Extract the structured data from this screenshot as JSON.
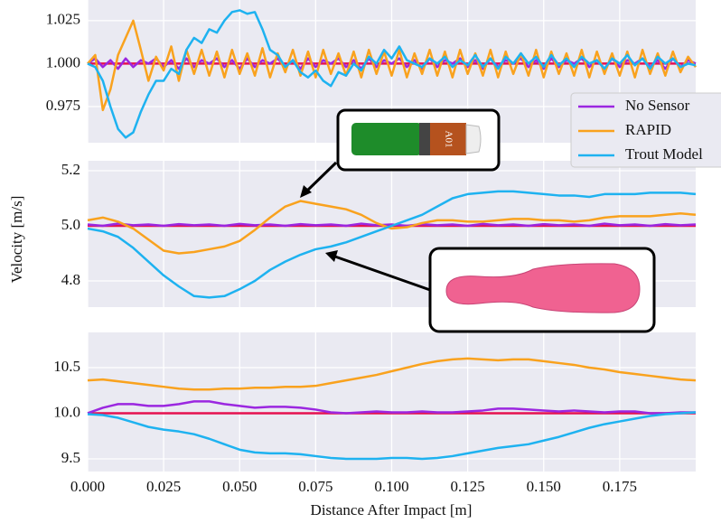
{
  "chart_data": [
    {
      "type": "line",
      "x": [
        0,
        0.0025,
        0.005,
        0.0075,
        0.01,
        0.0125,
        0.015,
        0.0175,
        0.02,
        0.0225,
        0.025,
        0.0275,
        0.03,
        0.0325,
        0.035,
        0.0375,
        0.04,
        0.0425,
        0.045,
        0.0475,
        0.05,
        0.0525,
        0.055,
        0.0575,
        0.06,
        0.0625,
        0.065,
        0.0675,
        0.07,
        0.0725,
        0.075,
        0.0775,
        0.08,
        0.0825,
        0.085,
        0.0875,
        0.09,
        0.0925,
        0.095,
        0.0975,
        0.1,
        0.1025,
        0.105,
        0.1075,
        0.11,
        0.1125,
        0.115,
        0.1175,
        0.12,
        0.1225,
        0.125,
        0.1275,
        0.13,
        0.1325,
        0.135,
        0.1375,
        0.14,
        0.1425,
        0.145,
        0.1475,
        0.15,
        0.1525,
        0.155,
        0.1575,
        0.16,
        0.1625,
        0.165,
        0.1675,
        0.17,
        0.1725,
        0.175,
        0.1775,
        0.18,
        0.1825,
        0.185,
        0.1875,
        0.19,
        0.1925,
        0.195,
        0.1975,
        0.2
      ],
      "series": [
        {
          "name": "No Sensor",
          "color": "#9b27e0",
          "values": [
            1.0,
            1.003,
            0.998,
            1.002,
            0.997,
            1.003,
            0.998,
            1.002,
            1.0,
            1.003,
            0.998,
            1.002,
            0.997,
            1.003,
            0.998,
            1.002,
            1.0,
            1.003,
            0.998,
            1.002,
            0.997,
            1.003,
            0.998,
            1.002,
            1.0,
            1.003,
            0.998,
            1.002,
            0.997,
            1.003,
            0.998,
            1.002,
            1.0,
            1.003,
            0.998,
            1.002,
            0.997,
            1.003,
            0.998,
            1.002,
            1.0,
            1.003,
            0.998,
            1.002,
            0.997,
            1.003,
            0.998,
            1.002,
            1.0,
            1.003,
            0.998,
            1.002,
            0.997,
            1.003,
            0.998,
            1.002,
            1.0,
            1.003,
            0.998,
            1.002,
            0.997,
            1.003,
            0.998,
            1.002,
            1.0,
            1.003,
            0.998,
            1.002,
            0.997,
            1.003,
            0.998,
            1.002,
            1.0,
            1.003,
            0.998,
            1.002,
            0.997,
            1.003,
            0.998,
            1.002,
            1.0
          ]
        },
        {
          "name": "RAPID",
          "color": "#f9a21e",
          "values": [
            1.0,
            1.005,
            0.973,
            0.985,
            1.005,
            1.015,
            1.025,
            1.008,
            0.99,
            1.004,
            0.996,
            1.01,
            0.99,
            1.008,
            0.994,
            1.008,
            0.993,
            1.007,
            0.992,
            1.008,
            0.994,
            1.006,
            0.993,
            1.009,
            0.992,
            1.006,
            0.995,
            1.008,
            0.993,
            1.007,
            0.992,
            1.008,
            0.994,
            1.006,
            0.993,
            1.007,
            0.992,
            1.008,
            0.994,
            1.007,
            0.993,
            1.008,
            0.992,
            1.006,
            0.994,
            1.008,
            0.993,
            1.007,
            0.992,
            1.008,
            0.994,
            1.006,
            0.993,
            1.008,
            0.992,
            1.007,
            0.994,
            1.006,
            0.993,
            1.008,
            0.992,
            1.007,
            0.994,
            1.006,
            0.993,
            1.008,
            0.992,
            1.007,
            0.994,
            1.006,
            0.993,
            1.007,
            0.992,
            1.008,
            0.994,
            1.006,
            0.993,
            1.007,
            0.995,
            1.004,
            0.998
          ]
        },
        {
          "name": "Trout Model",
          "color": "#1eb2f0",
          "values": [
            1.0,
            0.998,
            0.99,
            0.975,
            0.962,
            0.957,
            0.96,
            0.972,
            0.982,
            0.99,
            0.99,
            0.997,
            0.994,
            1.008,
            1.015,
            1.012,
            1.02,
            1.018,
            1.025,
            1.03,
            1.031,
            1.029,
            1.03,
            1.02,
            1.008,
            1.005,
            0.998,
            1.002,
            0.995,
            0.992,
            0.996,
            0.99,
            0.987,
            0.995,
            0.993,
            1.0,
            0.996,
            1.004,
            1.0,
            1.008,
            1.003,
            1.01,
            1.002,
            1.0,
            0.998,
            1.003,
            1.0,
            1.004,
            0.998,
            1.002,
            0.999,
            1.005,
            0.998,
            1.003,
            0.997,
            1.004,
            1.0,
            1.006,
            1.0,
            1.004,
            0.998,
            1.005,
            0.999,
            1.003,
            0.998,
            1.004,
            1.0,
            1.002,
            0.997,
            1.003,
            1.0,
            1.005,
            0.999,
            1.003,
            0.997,
            1.004,
            1.0,
            1.003,
            0.998,
            1.0,
            0.999
          ]
        }
      ],
      "hline": {
        "value": 1,
        "color": "#e5114f"
      },
      "xlim": [
        0,
        0.2
      ],
      "ylim": [
        0.954,
        1.037
      ],
      "yticks": [
        1.025,
        {
          "value": 1,
          "label": "1.000"
        },
        0.975
      ],
      "grid": true
    },
    {
      "type": "line",
      "x": [
        0,
        0.005,
        0.01,
        0.015,
        0.02,
        0.025,
        0.03,
        0.035,
        0.04,
        0.045,
        0.05,
        0.055,
        0.06,
        0.065,
        0.07,
        0.075,
        0.08,
        0.085,
        0.09,
        0.095,
        0.1,
        0.105,
        0.11,
        0.115,
        0.12,
        0.125,
        0.13,
        0.135,
        0.14,
        0.145,
        0.15,
        0.155,
        0.16,
        0.165,
        0.17,
        0.175,
        0.18,
        0.185,
        0.19,
        0.195,
        0.2
      ],
      "series": [
        {
          "name": "No Sensor",
          "color": "#9b27e0",
          "values": [
            5.005,
            5.0,
            5.008,
            5.002,
            5.005,
            5.0,
            5.006,
            5.002,
            5.005,
            5.0,
            5.007,
            5.002,
            5.005,
            5.0,
            5.006,
            5.002,
            5.005,
            5.0,
            5.008,
            5.002,
            5.005,
            5.0,
            5.006,
            5.002,
            5.005,
            5.0,
            5.007,
            5.002,
            5.005,
            5.0,
            5.006,
            5.002,
            5.005,
            5.0,
            5.008,
            5.002,
            5.005,
            5.0,
            5.006,
            5.002,
            5.005
          ]
        },
        {
          "name": "RAPID",
          "color": "#f9a21e",
          "values": [
            5.02,
            5.03,
            5.015,
            4.99,
            4.95,
            4.91,
            4.9,
            4.905,
            4.915,
            4.925,
            4.945,
            4.985,
            5.03,
            5.07,
            5.09,
            5.08,
            5.07,
            5.06,
            5.04,
            5.01,
            4.99,
            4.995,
            5.01,
            5.02,
            5.02,
            5.015,
            5.015,
            5.02,
            5.025,
            5.025,
            5.02,
            5.02,
            5.015,
            5.02,
            5.03,
            5.035,
            5.035,
            5.035,
            5.04,
            5.045,
            5.04
          ]
        },
        {
          "name": "Trout Model",
          "color": "#1eb2f0",
          "values": [
            4.99,
            4.98,
            4.96,
            4.92,
            4.87,
            4.82,
            4.78,
            4.745,
            4.74,
            4.745,
            4.77,
            4.8,
            4.84,
            4.87,
            4.895,
            4.915,
            4.925,
            4.94,
            4.96,
            4.98,
            5.0,
            5.02,
            5.04,
            5.07,
            5.1,
            5.115,
            5.12,
            5.125,
            5.125,
            5.12,
            5.115,
            5.11,
            5.11,
            5.105,
            5.115,
            5.115,
            5.115,
            5.12,
            5.12,
            5.12,
            5.115
          ]
        }
      ],
      "hline": {
        "value": 5,
        "color": "#e5114f"
      },
      "xlim": [
        0,
        0.2
      ],
      "ylim": [
        4.705,
        5.236
      ],
      "yticks": [
        5.2,
        {
          "value": 5,
          "label": "5.0"
        },
        4.8
      ],
      "grid": true,
      "ylabel": "Velocity [m/s]",
      "legend": "right",
      "annotations": [
        {
          "text": "A01"
        }
      ]
    },
    {
      "type": "line",
      "x": [
        0,
        0.005,
        0.01,
        0.015,
        0.02,
        0.025,
        0.03,
        0.035,
        0.04,
        0.045,
        0.05,
        0.055,
        0.06,
        0.065,
        0.07,
        0.075,
        0.08,
        0.085,
        0.09,
        0.095,
        0.1,
        0.105,
        0.11,
        0.115,
        0.12,
        0.125,
        0.13,
        0.135,
        0.14,
        0.145,
        0.15,
        0.155,
        0.16,
        0.165,
        0.17,
        0.175,
        0.18,
        0.185,
        0.19,
        0.195,
        0.2
      ],
      "series": [
        {
          "name": "No Sensor",
          "color": "#9b27e0",
          "values": [
            10.0,
            10.06,
            10.1,
            10.1,
            10.08,
            10.08,
            10.1,
            10.13,
            10.13,
            10.1,
            10.08,
            10.06,
            10.07,
            10.07,
            10.06,
            10.04,
            10.01,
            10.0,
            10.01,
            10.02,
            10.01,
            10.01,
            10.02,
            10.01,
            10.01,
            10.02,
            10.03,
            10.05,
            10.05,
            10.04,
            10.03,
            10.02,
            10.03,
            10.02,
            10.01,
            10.02,
            10.02,
            10.0,
            10.0,
            10.01,
            10.01
          ]
        },
        {
          "name": "RAPID",
          "color": "#f9a21e",
          "values": [
            10.36,
            10.37,
            10.35,
            10.33,
            10.31,
            10.29,
            10.27,
            10.26,
            10.26,
            10.27,
            10.27,
            10.28,
            10.28,
            10.29,
            10.29,
            10.3,
            10.33,
            10.36,
            10.39,
            10.42,
            10.46,
            10.5,
            10.54,
            10.57,
            10.59,
            10.6,
            10.59,
            10.58,
            10.59,
            10.59,
            10.57,
            10.55,
            10.53,
            10.5,
            10.48,
            10.45,
            10.43,
            10.41,
            10.39,
            10.37,
            10.36
          ]
        },
        {
          "name": "Trout Model",
          "color": "#1eb2f0",
          "values": [
            9.99,
            9.98,
            9.95,
            9.9,
            9.85,
            9.82,
            9.8,
            9.77,
            9.72,
            9.66,
            9.6,
            9.57,
            9.56,
            9.56,
            9.55,
            9.53,
            9.51,
            9.5,
            9.5,
            9.5,
            9.51,
            9.51,
            9.5,
            9.51,
            9.53,
            9.56,
            9.59,
            9.62,
            9.64,
            9.66,
            9.7,
            9.74,
            9.79,
            9.84,
            9.88,
            9.91,
            9.94,
            9.97,
            9.99,
            10.0,
            10.01
          ]
        }
      ],
      "hline": {
        "value": 10,
        "color": "#e5114f"
      },
      "xlim": [
        0,
        0.2
      ],
      "ylim": [
        9.361,
        10.886
      ],
      "yticks": [
        10.5,
        {
          "value": 10,
          "label": "10.0"
        },
        9.5
      ],
      "xticks": [
        {
          "value": 0,
          "label": "0.000"
        },
        {
          "value": 0.025,
          "label": "0.025"
        },
        {
          "value": 0.05,
          "label": "0.050"
        },
        {
          "value": 0.075,
          "label": "0.075"
        },
        {
          "value": 0.1,
          "label": "0.100"
        },
        {
          "value": 0.125,
          "label": "0.125"
        },
        {
          "value": 0.15,
          "label": "0.150"
        },
        {
          "value": 0.175,
          "label": "0.175"
        }
      ],
      "grid": true,
      "xlabel": "Distance After Impact [m]"
    }
  ]
}
